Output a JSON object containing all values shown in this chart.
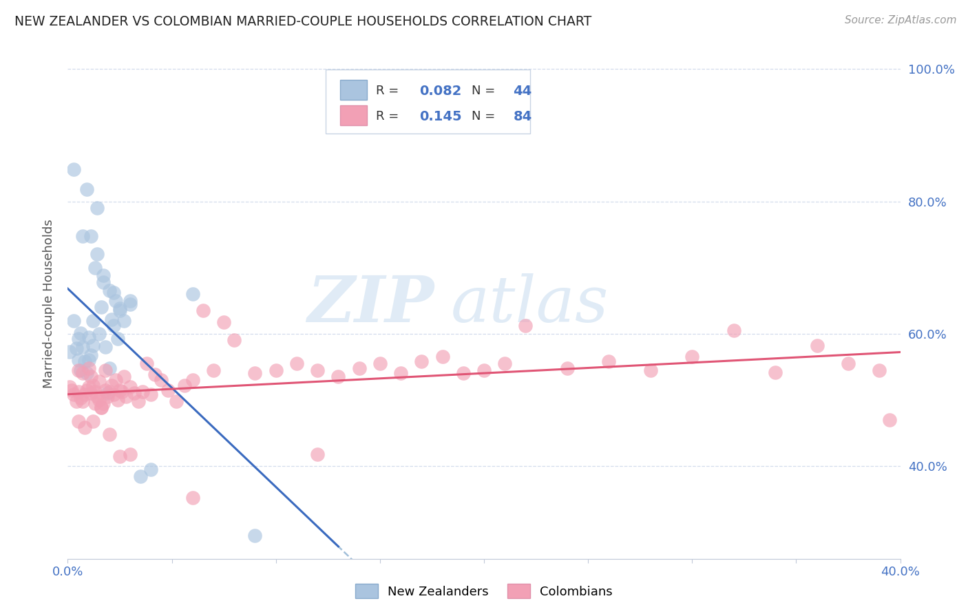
{
  "title": "NEW ZEALANDER VS COLOMBIAN MARRIED-COUPLE HOUSEHOLDS CORRELATION CHART",
  "source": "Source: ZipAtlas.com",
  "ylabel": "Married-couple Households",
  "xlim": [
    0.0,
    0.4
  ],
  "ylim": [
    0.26,
    1.03
  ],
  "x_tick_positions": [
    0.0,
    0.05,
    0.1,
    0.15,
    0.2,
    0.25,
    0.3,
    0.35,
    0.4
  ],
  "x_tick_labels": [
    "0.0%",
    "",
    "",
    "",
    "",
    "",
    "",
    "",
    "40.0%"
  ],
  "y_tick_positions": [
    0.4,
    0.6,
    0.8,
    1.0
  ],
  "y_tick_labels": [
    "40.0%",
    "60.0%",
    "80.0%",
    "100.0%"
  ],
  "r_nz": 0.082,
  "n_nz": 44,
  "r_col": 0.145,
  "n_col": 84,
  "nz_color": "#aac4df",
  "col_color": "#f2a0b5",
  "nz_line_color": "#3a6abf",
  "col_line_color": "#e05575",
  "background_color": "#ffffff",
  "watermark_color": "#ccdff0",
  "nz_points_x": [
    0.001,
    0.003,
    0.004,
    0.005,
    0.005,
    0.006,
    0.006,
    0.007,
    0.008,
    0.009,
    0.01,
    0.01,
    0.011,
    0.012,
    0.012,
    0.013,
    0.014,
    0.015,
    0.016,
    0.017,
    0.018,
    0.019,
    0.02,
    0.021,
    0.022,
    0.023,
    0.024,
    0.025,
    0.027,
    0.03,
    0.003,
    0.007,
    0.009,
    0.011,
    0.014,
    0.017,
    0.02,
    0.022,
    0.025,
    0.03,
    0.035,
    0.04,
    0.06,
    0.09
  ],
  "nz_points_y": [
    0.573,
    0.62,
    0.578,
    0.56,
    0.592,
    0.545,
    0.601,
    0.58,
    0.558,
    0.54,
    0.56,
    0.595,
    0.568,
    0.582,
    0.62,
    0.7,
    0.72,
    0.6,
    0.64,
    0.678,
    0.58,
    0.51,
    0.548,
    0.622,
    0.612,
    0.65,
    0.592,
    0.638,
    0.62,
    0.645,
    0.848,
    0.748,
    0.818,
    0.748,
    0.79,
    0.688,
    0.665,
    0.662,
    0.635,
    0.65,
    0.385,
    0.395,
    0.66,
    0.295
  ],
  "col_points_x": [
    0.001,
    0.002,
    0.003,
    0.004,
    0.005,
    0.005,
    0.006,
    0.007,
    0.007,
    0.008,
    0.009,
    0.01,
    0.01,
    0.011,
    0.011,
    0.012,
    0.013,
    0.013,
    0.014,
    0.015,
    0.015,
    0.016,
    0.017,
    0.018,
    0.018,
    0.019,
    0.02,
    0.021,
    0.022,
    0.023,
    0.024,
    0.025,
    0.026,
    0.027,
    0.028,
    0.03,
    0.032,
    0.034,
    0.036,
    0.038,
    0.04,
    0.042,
    0.045,
    0.048,
    0.052,
    0.056,
    0.06,
    0.065,
    0.07,
    0.075,
    0.08,
    0.09,
    0.1,
    0.11,
    0.12,
    0.13,
    0.14,
    0.15,
    0.16,
    0.17,
    0.18,
    0.19,
    0.2,
    0.21,
    0.22,
    0.24,
    0.26,
    0.28,
    0.3,
    0.32,
    0.34,
    0.36,
    0.375,
    0.39,
    0.395,
    0.005,
    0.008,
    0.012,
    0.016,
    0.02,
    0.025,
    0.03,
    0.06,
    0.12
  ],
  "col_points_y": [
    0.52,
    0.515,
    0.508,
    0.498,
    0.512,
    0.545,
    0.503,
    0.498,
    0.54,
    0.508,
    0.515,
    0.52,
    0.548,
    0.51,
    0.535,
    0.522,
    0.495,
    0.512,
    0.505,
    0.5,
    0.528,
    0.488,
    0.495,
    0.515,
    0.545,
    0.505,
    0.512,
    0.522,
    0.508,
    0.53,
    0.5,
    0.515,
    0.512,
    0.535,
    0.505,
    0.52,
    0.51,
    0.498,
    0.512,
    0.555,
    0.508,
    0.538,
    0.53,
    0.515,
    0.498,
    0.522,
    0.53,
    0.635,
    0.545,
    0.618,
    0.59,
    0.54,
    0.545,
    0.555,
    0.545,
    0.535,
    0.548,
    0.555,
    0.54,
    0.558,
    0.565,
    0.54,
    0.545,
    0.555,
    0.612,
    0.548,
    0.558,
    0.545,
    0.565,
    0.605,
    0.542,
    0.582,
    0.555,
    0.545,
    0.47,
    0.468,
    0.458,
    0.468,
    0.488,
    0.448,
    0.415,
    0.418,
    0.352,
    0.418
  ]
}
